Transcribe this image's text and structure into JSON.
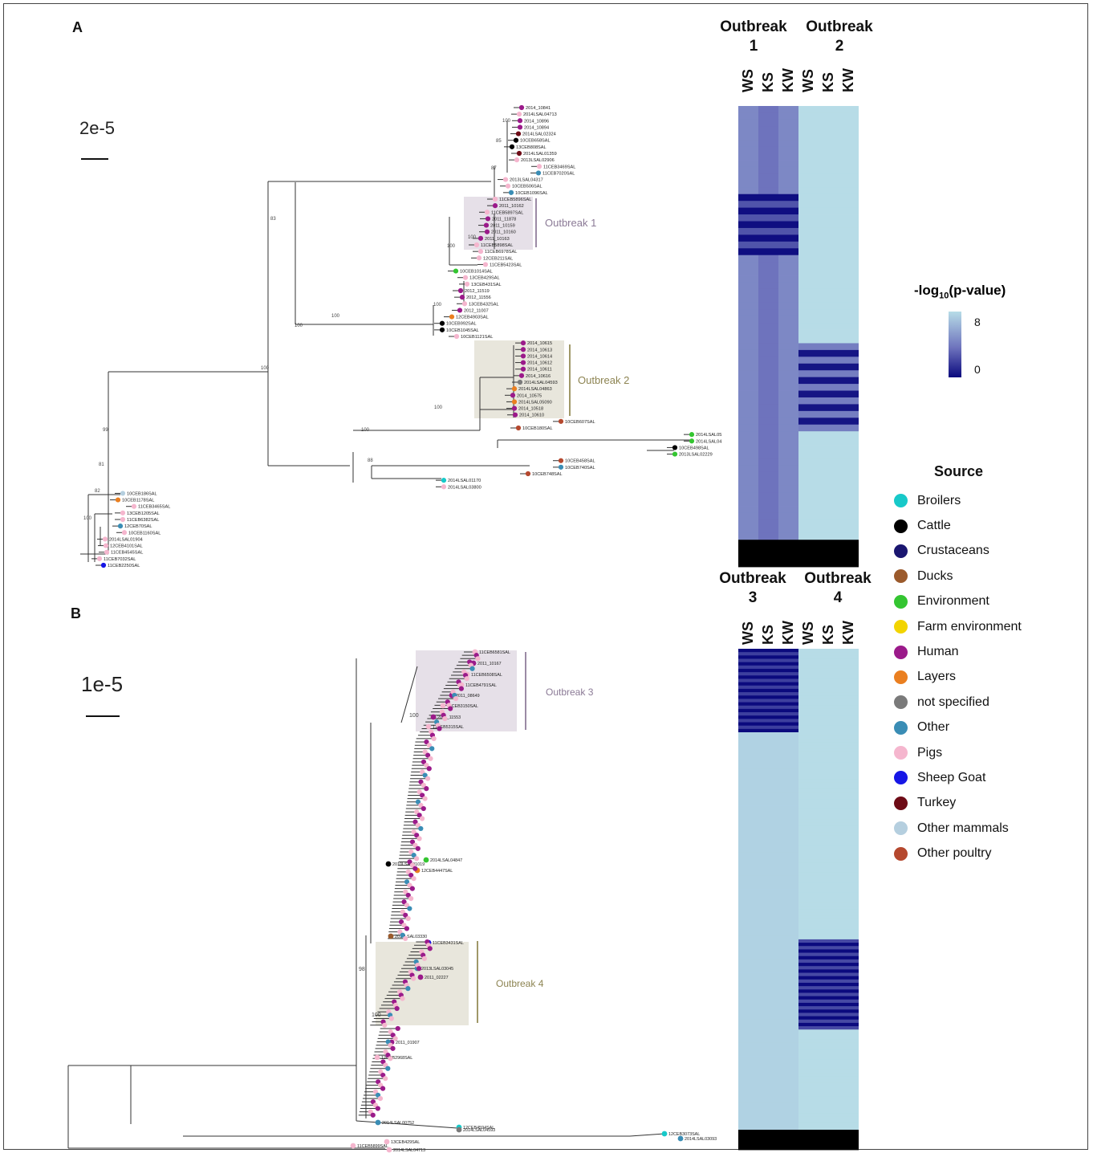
{
  "panels": {
    "a": {
      "label": "A",
      "scale_bar": "2e-5",
      "outbreak_left": "Outbreak 1",
      "outbreak_right": "Outbreak 2",
      "heat_header_left": [
        "Outbreak",
        "1"
      ],
      "heat_header_right": [
        "Outbreak",
        "2"
      ]
    },
    "b": {
      "label": "B",
      "scale_bar": "1e-5",
      "outbreak_left": "Outbreak 3",
      "outbreak_right": "Outbreak 4",
      "heat_header_left": [
        "Outbreak",
        "3"
      ],
      "heat_header_right": [
        "Outbreak",
        "4"
      ]
    }
  },
  "heatmap_columns": [
    "WS",
    "KS",
    "KW"
  ],
  "colorbar": {
    "title_prefix": "-log",
    "title_sub": "10",
    "title_suffix": "(p-value)",
    "ticks": [
      "8",
      "0"
    ],
    "low_color": "#0b0a7e",
    "mid_color": "#6e73bd",
    "high_color": "#b7dce7"
  },
  "legend": {
    "title": "Source",
    "items": [
      {
        "label": "Broilers",
        "color": "#17c9c9"
      },
      {
        "label": "Cattle",
        "color": "#000000"
      },
      {
        "label": "Crustaceans",
        "color": "#1a1670"
      },
      {
        "label": "Ducks",
        "color": "#9b5a2c"
      },
      {
        "label": "Environment",
        "color": "#34c531"
      },
      {
        "label": "Farm environment",
        "color": "#f2d400"
      },
      {
        "label": "Human",
        "color": "#9b1a8a"
      },
      {
        "label": "Layers",
        "color": "#ea7f20"
      },
      {
        "label": "not specified",
        "color": "#7a7a7a"
      },
      {
        "label": "Other",
        "color": "#3a8db5"
      },
      {
        "label": "Pigs",
        "color": "#f5b6ce"
      },
      {
        "label": "Sheep Goat",
        "color": "#1616e6"
      },
      {
        "label": "Turkey",
        "color": "#6e0b16"
      },
      {
        "label": "Other mammals",
        "color": "#b5cfdf"
      },
      {
        "label": "Other poultry",
        "color": "#b5482e"
      }
    ]
  },
  "tree_a_tips": [
    {
      "label": "2014_10841",
      "source": "Human"
    },
    {
      "label": "2014LSAL04713",
      "source": "Pigs"
    },
    {
      "label": "2014_10896",
      "source": "Human"
    },
    {
      "label": "2014_10894",
      "source": "Human"
    },
    {
      "label": "2014LSAL02324",
      "source": "Turkey"
    },
    {
      "label": "10CEB658SAL",
      "source": "Cattle"
    },
    {
      "label": "13CEB808SAL",
      "source": "Cattle"
    },
    {
      "label": "2014LSAL01359",
      "source": "Turkey"
    },
    {
      "label": "2013LSAL02906",
      "source": "Pigs"
    },
    {
      "label": "11CEB3469SAL",
      "source": "Pigs"
    },
    {
      "label": "11CEB7020SAL",
      "source": "Other"
    },
    {
      "label": "2013LSAL04317",
      "source": "Pigs"
    },
    {
      "label": "10CEB506SAL",
      "source": "Pigs"
    },
    {
      "label": "10CEB1096SAL",
      "source": "Other"
    },
    {
      "label": "11CEB5896SAL",
      "source": "Pigs"
    },
    {
      "label": "2011_10162",
      "source": "Human"
    },
    {
      "label": "11CEB5897SAL",
      "source": "Pigs"
    },
    {
      "label": "2011_11878",
      "source": "Human"
    },
    {
      "label": "2011_10159",
      "source": "Human"
    },
    {
      "label": "2011_10160",
      "source": "Human"
    },
    {
      "label": "2011_10163",
      "source": "Human"
    },
    {
      "label": "11CEB5898SAL",
      "source": "Pigs"
    },
    {
      "label": "11CEB6978SAL",
      "source": "Pigs"
    },
    {
      "label": "12CEB211SAL",
      "source": "Pigs"
    },
    {
      "label": "11CEB5423SAL",
      "source": "Pigs"
    },
    {
      "label": "10CEB1014SAL",
      "source": "Environment"
    },
    {
      "label": "13CEB429SAL",
      "source": "Pigs"
    },
    {
      "label": "13CEB431SAL",
      "source": "Pigs"
    },
    {
      "label": "2012_11519",
      "source": "Human"
    },
    {
      "label": "2012_11556",
      "source": "Human"
    },
    {
      "label": "13CEB432SAL",
      "source": "Pigs"
    },
    {
      "label": "2012_11007",
      "source": "Human"
    },
    {
      "label": "12CEB4903SAL",
      "source": "Layers"
    },
    {
      "label": "10CEB992SAL",
      "source": "Cattle"
    },
    {
      "label": "10CEB1045SAL",
      "source": "Cattle"
    },
    {
      "label": "10CEB1121SAL",
      "source": "Pigs"
    },
    {
      "label": "2014_10615",
      "source": "Human"
    },
    {
      "label": "2014_10613",
      "source": "Human"
    },
    {
      "label": "2014_10614",
      "source": "Human"
    },
    {
      "label": "2014_10612",
      "source": "Human"
    },
    {
      "label": "2014_10611",
      "source": "Human"
    },
    {
      "label": "2014_10616",
      "source": "Human"
    },
    {
      "label": "2014LSAL04593",
      "source": "not specified"
    },
    {
      "label": "2014LSAL04863",
      "source": "Layers"
    },
    {
      "label": "2014_10575",
      "source": "Human"
    },
    {
      "label": "2014LSAL05090",
      "source": "Layers"
    },
    {
      "label": "2014_10518",
      "source": "Human"
    },
    {
      "label": "2014_10610",
      "source": "Human"
    },
    {
      "label": "10CEB607SAL",
      "source": "Other poultry"
    },
    {
      "label": "10CEB180SAL",
      "source": "Other poultry"
    },
    {
      "label": "2014LSAL05112",
      "source": "Environment"
    },
    {
      "label": "2014LSAL04138",
      "source": "Environment"
    },
    {
      "label": "10CEB498SAL",
      "source": "Cattle"
    },
    {
      "label": "2013LSAL02229",
      "source": "Environment"
    },
    {
      "label": "10CEB458SAL",
      "source": "Other poultry"
    },
    {
      "label": "10CEB740SAL",
      "source": "Other"
    },
    {
      "label": "10CEB748SAL",
      "source": "Other poultry"
    },
    {
      "label": "2014LSAL01170",
      "source": "Broilers"
    },
    {
      "label": "2014LSAL03800",
      "source": "Pigs"
    },
    {
      "label": "10CEB186SAL",
      "source": "Other mammals"
    },
    {
      "label": "10CEB1178SAL",
      "source": "Layers"
    },
    {
      "label": "11CEB3465SAL",
      "source": "Pigs"
    },
    {
      "label": "13CEB1205SAL",
      "source": "Pigs"
    },
    {
      "label": "11CEB6382SAL",
      "source": "Pigs"
    },
    {
      "label": "12CEB70SAL",
      "source": "Other"
    },
    {
      "label": "10CEB1160SAL",
      "source": "Pigs"
    },
    {
      "label": "2014LSAL01904",
      "source": "Pigs"
    },
    {
      "label": "12CEB4101SAL",
      "source": "Pigs"
    },
    {
      "label": "11CEB4545SAL",
      "source": "Pigs"
    },
    {
      "label": "11CEB7032SAL",
      "source": "Pigs"
    },
    {
      "label": "11CEB2250SAL",
      "source": "Sheep Goat"
    }
  ],
  "tree_a_support": [
    "100",
    "85",
    "87",
    "100",
    "83",
    "100",
    "100",
    "100",
    "100",
    "100",
    "100",
    "99",
    "81",
    "82",
    "100",
    "88",
    "100"
  ],
  "tree_b_tips": [
    {
      "label": "11CEB6581SAL",
      "source": "Pigs"
    },
    {
      "label": "2011_10167",
      "source": "Human"
    },
    {
      "label": "11CEB6508SAL",
      "source": "Pigs"
    },
    {
      "label": "11CEB4791SAL",
      "source": "Pigs"
    },
    {
      "label": "2011_08649",
      "source": "Human"
    },
    {
      "label": "11CEB3150SAL",
      "source": "Pigs"
    },
    {
      "label": "2011_11553",
      "source": "Human"
    },
    {
      "label": "11CEB5315SAL",
      "source": "Pigs"
    },
    {
      "label": "2010LSAL01019",
      "source": "Cattle"
    },
    {
      "label": "2014LSAL04847",
      "source": "Environment"
    },
    {
      "label": "12CEB4447SAL",
      "source": "Layers"
    },
    {
      "label": "2014LSAL03330",
      "source": "Ducks"
    },
    {
      "label": "11CEB3431SAL",
      "source": "Sheep Goat"
    },
    {
      "label": "2011_02227",
      "source": "Human"
    },
    {
      "label": "2013LSAL03045",
      "source": "Other"
    },
    {
      "label": "2011_01907",
      "source": "Human"
    },
    {
      "label": "12CEB2968SAL",
      "source": "Pigs"
    },
    {
      "label": "2014LSAL00752",
      "source": "Other"
    },
    {
      "label": "12CEB4594SAL",
      "source": "Broilers"
    },
    {
      "label": "2014LSAL04593",
      "source": "not specified"
    },
    {
      "label": "12CEB3073SAL",
      "source": "Broilers"
    },
    {
      "label": "2014LSAL03093",
      "source": "Other"
    },
    {
      "label": "13CEB429SAL",
      "source": "Pigs"
    },
    {
      "label": "11CEB5899SAL",
      "source": "Pigs"
    },
    {
      "label": "2014LSAL04713",
      "source": "Pigs"
    }
  ],
  "tree_b_support": [
    "100",
    "98",
    "100"
  ]
}
